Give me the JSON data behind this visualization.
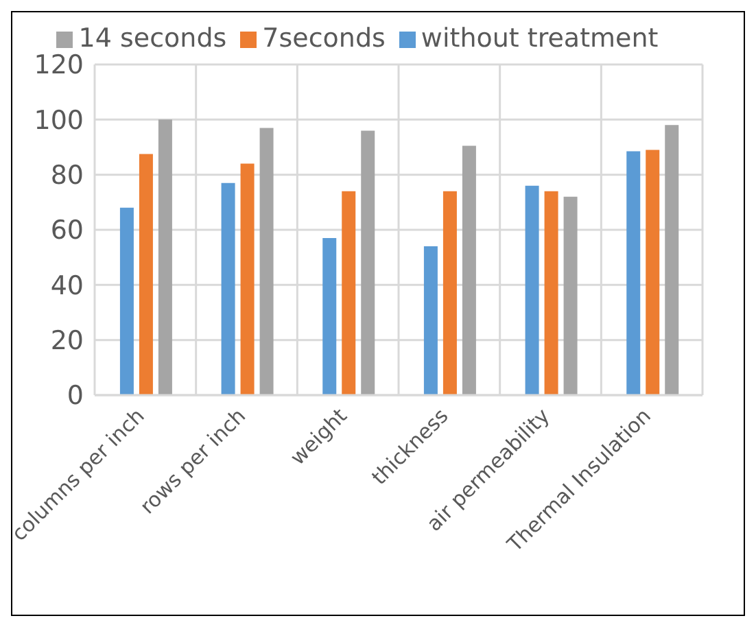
{
  "chart_data": {
    "type": "bar",
    "categories": [
      "columns per inch",
      "rows per inch",
      "weight",
      "thickness",
      "air permeability",
      "Thermal Insulation"
    ],
    "series": [
      {
        "name": "without treatment",
        "color": "#5b9bd5",
        "values": [
          68,
          77,
          57,
          54,
          76,
          88.5
        ]
      },
      {
        "name": "7seconds",
        "color": "#ed7d31",
        "values": [
          87.5,
          84,
          74,
          74,
          74,
          89
        ]
      },
      {
        "name": "14 seconds",
        "color": "#a5a5a5",
        "values": [
          100,
          97,
          96,
          90.5,
          72,
          98
        ]
      }
    ],
    "ylim": [
      0,
      120
    ],
    "yticks": [
      0,
      20,
      40,
      60,
      80,
      100,
      120
    ],
    "grid": true,
    "legend": "top"
  }
}
